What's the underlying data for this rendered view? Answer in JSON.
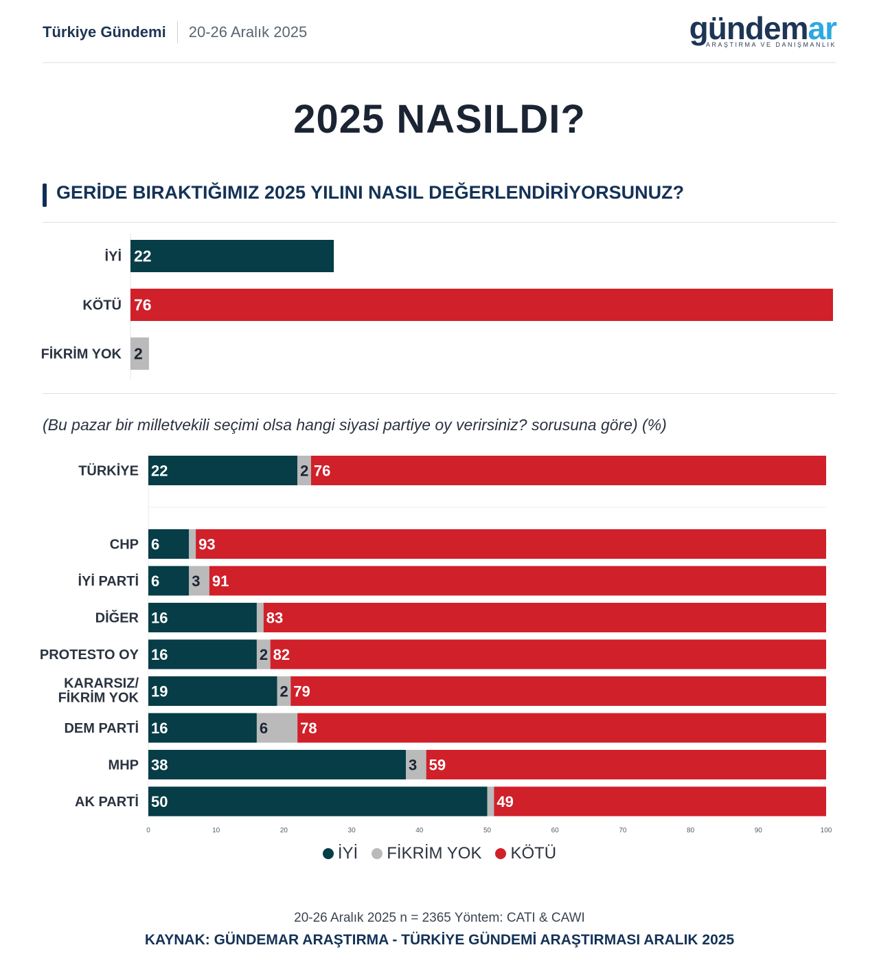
{
  "header": {
    "title": "Türkiye Gündemi",
    "date": "20-26 Aralık 2025"
  },
  "logo": {
    "word_main": "gündem",
    "word_accent": "ar",
    "tagline": "ARAŞTIRMA VE DANIŞMANLIK"
  },
  "main_title": "2025 NASILDI?",
  "question": "GERİDE BIRAKTIĞIMIZ 2025 YILINI NASIL DEĞERLENDİRİYORSUNUZ?",
  "subquestion": "(Bu pazar bir milletvekili seçimi olsa hangi siyasi partiye oy verirsiniz? sorusuna göre) (%)",
  "colors": {
    "iyi": "#063d47",
    "fikrim_yok": "#bababa",
    "kotu": "#d0202a"
  },
  "chart_data": [
    {
      "type": "bar",
      "orientation": "horizontal",
      "title": "GERİDE BIRAKTIĞIMIZ 2025 YILINI NASIL DEĞERLENDİRİYORSUNUZ?",
      "categories": [
        "İYİ",
        "KÖTÜ",
        "FİKRİM YOK"
      ],
      "values": [
        22,
        76,
        2
      ],
      "xlim": [
        0,
        76
      ]
    },
    {
      "type": "bar",
      "orientation": "horizontal",
      "stacked": true,
      "title": "(Bu pazar bir milletvekili seçimi olsa hangi siyasi partiye oy verirsiniz? sorusuna göre) (%)",
      "categories": [
        "TÜRKİYE",
        "CHP",
        "İYİ PARTİ",
        "DİĞER",
        "PROTESTO OY",
        "KARARSIZ/ FİKRİM YOK",
        "DEM PARTİ",
        "MHP",
        "AK PARTİ"
      ],
      "series": [
        {
          "name": "İYİ",
          "values": [
            22,
            6,
            6,
            16,
            16,
            19,
            16,
            38,
            50
          ]
        },
        {
          "name": "FİKRİM YOK",
          "values": [
            2,
            1,
            3,
            1,
            2,
            2,
            6,
            3,
            1
          ]
        },
        {
          "name": "KÖTÜ",
          "values": [
            76,
            93,
            91,
            83,
            82,
            79,
            78,
            59,
            49
          ]
        }
      ],
      "value_labels": {
        "İYİ": [
          "22",
          "6",
          "6",
          "16",
          "16",
          "19",
          "16",
          "38",
          "50"
        ],
        "FİKRİM YOK": [
          "2",
          "",
          "3",
          "",
          "2",
          "2",
          "6",
          "3",
          ""
        ],
        "KÖTÜ": [
          "76",
          "93",
          "91",
          "83",
          "82",
          "79",
          "78",
          "59",
          "49"
        ]
      },
      "xlim": [
        0,
        100
      ],
      "xticks": [
        0,
        10,
        20,
        30,
        40,
        50,
        60,
        70,
        80,
        90,
        100
      ],
      "legend": [
        "İYİ",
        "FİKRİM YOK",
        "KÖTÜ"
      ],
      "legend_position": "bottom-center"
    }
  ],
  "footer": {
    "method": "20-26 Aralık 2025 n = 2365 Yöntem: CATI & CAWI",
    "source": "KAYNAK: GÜNDEMAR ARAŞTIRMA - TÜRKİYE GÜNDEMİ ARAŞTIRMASI ARALIK 2025"
  }
}
